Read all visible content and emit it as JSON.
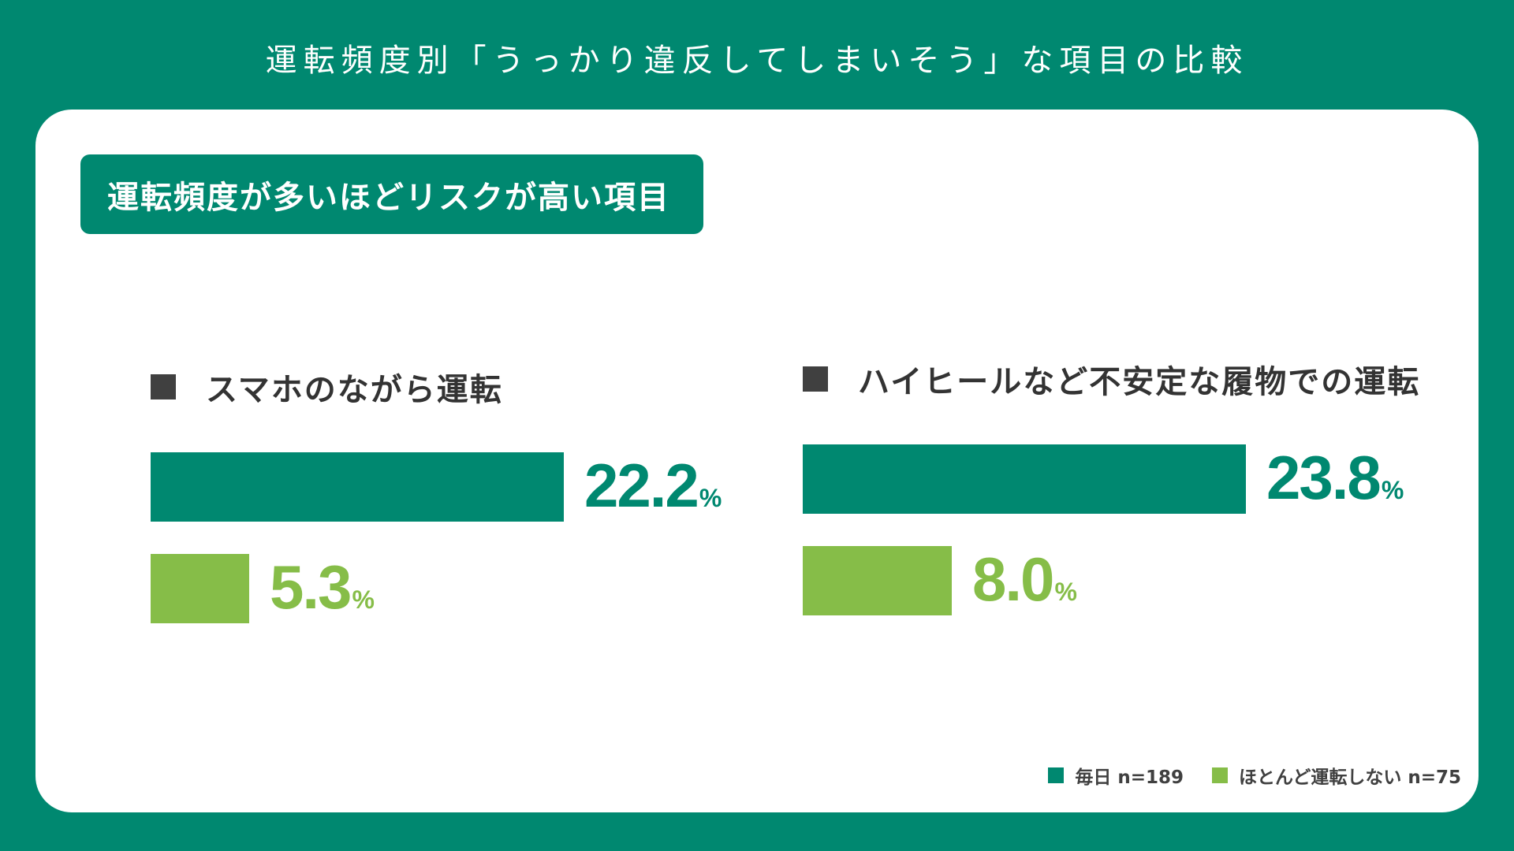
{
  "title": "運転頻度別「うっかり違反してしまいそう」な項目の比較",
  "chart_data": {
    "type": "bar",
    "orientation": "horizontal",
    "subtitle": "運転頻度が多いほどリスクが高い項目",
    "categories": [
      "スマホのながら運転",
      "ハイヒールなど不安定な履物での運転"
    ],
    "unit": "%",
    "series": [
      {
        "name": "毎日 n=189",
        "values": [
          22.2,
          23.8
        ],
        "color": "#008870"
      },
      {
        "name": "ほとんど運転しない n=75",
        "values": [
          5.3,
          8.0
        ],
        "color": "#86bd48"
      }
    ],
    "value_labels": [
      [
        "22.2",
        "23.8"
      ],
      [
        "5.3",
        "8.0"
      ]
    ],
    "legend_position": "bottom-right",
    "grid": false
  }
}
